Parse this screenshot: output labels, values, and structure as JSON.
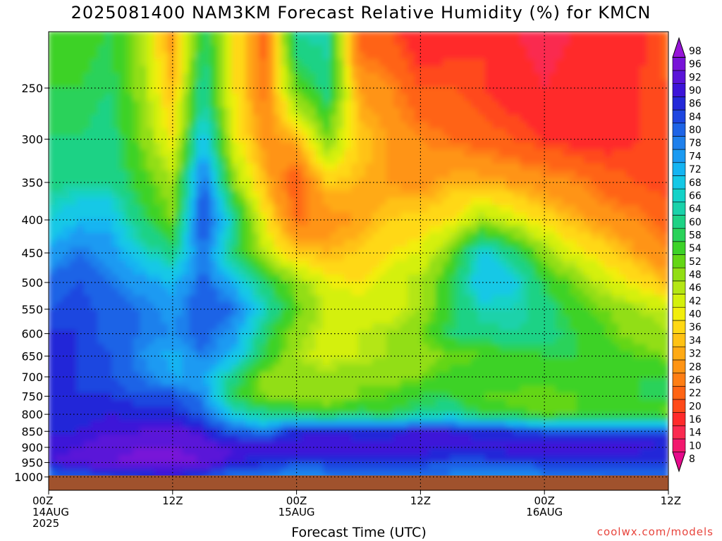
{
  "chart_data": {
    "type": "heatmap",
    "title": "2025081400 NAM3KM Forecast Relative Humidity (%) for KMCN",
    "xlabel": "Forecast Time (UTC)",
    "ylabel": "",
    "y_axis": {
      "scale": "log-pressure",
      "inverted": true,
      "range": [
        1000,
        200
      ],
      "ticks": [
        250,
        300,
        350,
        400,
        450,
        500,
        550,
        600,
        650,
        700,
        750,
        800,
        850,
        900,
        950,
        1000
      ]
    },
    "x_axis": {
      "range_hours": [
        0,
        60
      ],
      "ticks": [
        {
          "hour": 0,
          "lines": [
            "00Z",
            "14AUG",
            "2025"
          ]
        },
        {
          "hour": 12,
          "lines": [
            "12Z"
          ]
        },
        {
          "hour": 24,
          "lines": [
            "00Z",
            "15AUG"
          ]
        },
        {
          "hour": 36,
          "lines": [
            "12Z"
          ]
        },
        {
          "hour": 48,
          "lines": [
            "00Z",
            "16AUG"
          ]
        },
        {
          "hour": 60,
          "lines": [
            "12Z"
          ]
        }
      ]
    },
    "grid": true,
    "colorbar": {
      "placement": "right",
      "labels": [
        8,
        10,
        14,
        16,
        20,
        22,
        26,
        28,
        32,
        34,
        36,
        40,
        42,
        46,
        48,
        52,
        54,
        58,
        60,
        64,
        66,
        68,
        72,
        74,
        78,
        80,
        84,
        86,
        90,
        92,
        96,
        98
      ],
      "colors": [
        "#e60a8c",
        "#f2186e",
        "#fa2a50",
        "#ff2b2b",
        "#ff4a1a",
        "#ff6414",
        "#ff7e14",
        "#ff9414",
        "#ffaa14",
        "#ffc214",
        "#ffd814",
        "#f2ee0c",
        "#d4f00c",
        "#b4e614",
        "#92de14",
        "#64d614",
        "#3cd228",
        "#2ad25a",
        "#1ed285",
        "#1ad2aa",
        "#14d2c8",
        "#14c8e6",
        "#14b4f2",
        "#1a9af2",
        "#1e80ec",
        "#1e64e6",
        "#1e46e0",
        "#2328d8",
        "#3c14d8",
        "#5a14d8",
        "#7814d8",
        "#9614d8"
      ]
    },
    "z_rows_pressure": [
      1000,
      950,
      900,
      850,
      800,
      750,
      700,
      650,
      600,
      550,
      500,
      450,
      400,
      350,
      300,
      250,
      200
    ],
    "z_cols_hours": [
      0,
      3,
      6,
      9,
      12,
      15,
      18,
      21,
      24,
      27,
      30,
      33,
      36,
      39,
      42,
      45,
      48,
      51,
      54,
      57,
      60
    ],
    "z_rh": [
      [
        80,
        82,
        84,
        86,
        88,
        84,
        80,
        78,
        76,
        78,
        78,
        79,
        80,
        78,
        76,
        76,
        78,
        79,
        80,
        80,
        80
      ],
      [
        92,
        94,
        96,
        97,
        98,
        96,
        90,
        88,
        86,
        86,
        86,
        86,
        86,
        84,
        84,
        86,
        86,
        86,
        86,
        86,
        86
      ],
      [
        90,
        92,
        94,
        96,
        96,
        94,
        92,
        92,
        92,
        92,
        92,
        92,
        92,
        92,
        92,
        92,
        92,
        92,
        92,
        92,
        90
      ],
      [
        90,
        90,
        92,
        92,
        94,
        90,
        82,
        78,
        88,
        90,
        88,
        88,
        92,
        90,
        88,
        86,
        84,
        84,
        84,
        84,
        84
      ],
      [
        86,
        88,
        90,
        88,
        88,
        82,
        68,
        62,
        60,
        58,
        60,
        58,
        62,
        64,
        58,
        56,
        52,
        54,
        54,
        54,
        52
      ],
      [
        86,
        86,
        86,
        84,
        84,
        78,
        58,
        52,
        50,
        48,
        52,
        54,
        58,
        58,
        54,
        52,
        52,
        54,
        56,
        58,
        60
      ],
      [
        88,
        86,
        84,
        80,
        74,
        74,
        62,
        50,
        50,
        50,
        52,
        50,
        52,
        56,
        56,
        58,
        56,
        56,
        56,
        58,
        58
      ],
      [
        88,
        86,
        84,
        78,
        72,
        80,
        72,
        58,
        48,
        44,
        46,
        48,
        50,
        52,
        54,
        56,
        58,
        58,
        56,
        54,
        52
      ],
      [
        86,
        86,
        82,
        80,
        78,
        82,
        76,
        60,
        50,
        44,
        46,
        48,
        52,
        60,
        62,
        64,
        62,
        58,
        54,
        50,
        48
      ],
      [
        84,
        86,
        82,
        80,
        76,
        84,
        80,
        66,
        54,
        46,
        44,
        44,
        48,
        58,
        66,
        66,
        62,
        56,
        52,
        48,
        46
      ],
      [
        82,
        84,
        80,
        76,
        72,
        82,
        72,
        60,
        50,
        42,
        40,
        44,
        48,
        58,
        72,
        70,
        58,
        52,
        44,
        40,
        34
      ],
      [
        74,
        80,
        76,
        68,
        62,
        80,
        60,
        46,
        36,
        34,
        36,
        40,
        42,
        52,
        70,
        62,
        50,
        42,
        38,
        32,
        28
      ],
      [
        68,
        72,
        72,
        60,
        52,
        86,
        64,
        40,
        26,
        30,
        32,
        36,
        38,
        40,
        48,
        44,
        38,
        34,
        30,
        28,
        24
      ],
      [
        62,
        64,
        64,
        56,
        48,
        82,
        50,
        34,
        22,
        36,
        34,
        32,
        30,
        34,
        34,
        32,
        30,
        28,
        24,
        22,
        20
      ],
      [
        60,
        60,
        62,
        52,
        40,
        72,
        42,
        30,
        34,
        52,
        36,
        32,
        28,
        26,
        24,
        22,
        20,
        18,
        18,
        20,
        22
      ],
      [
        58,
        58,
        60,
        50,
        34,
        64,
        40,
        26,
        54,
        62,
        32,
        28,
        22,
        22,
        20,
        18,
        16,
        18,
        18,
        20,
        22
      ],
      [
        56,
        56,
        58,
        48,
        30,
        60,
        40,
        24,
        66,
        66,
        22,
        22,
        16,
        18,
        20,
        16,
        14,
        16,
        16,
        18,
        24
      ]
    ],
    "ground_color": "#a0522d"
  },
  "footer": {
    "watermark": "coolwx.com/models"
  }
}
